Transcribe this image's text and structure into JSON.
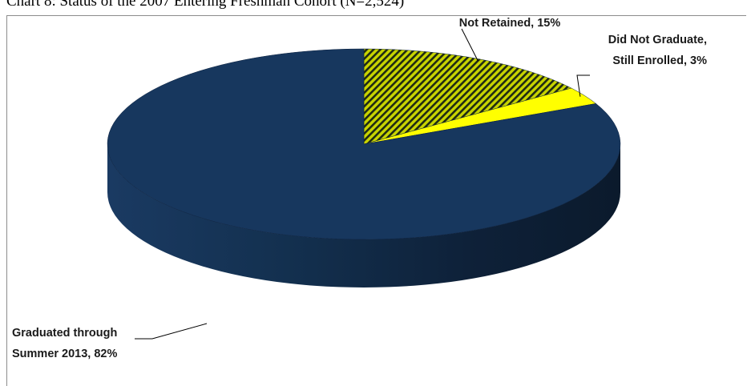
{
  "caption": "Chart 8: Status of the 2007 Entering Freshman Cohort (N=2,524)",
  "chart_data": {
    "type": "pie",
    "title": "Chart 8: Status of the 2007 Entering Freshman Cohort (N=2,524)",
    "three_d": true,
    "legend": "none",
    "slices": [
      {
        "name": "Not Retained",
        "value": 15,
        "label": [
          "Not Retained, 15%"
        ],
        "color": "#c8d400",
        "pattern": "diagonal-hatch"
      },
      {
        "name": "Did Not Graduate, Still Enrolled",
        "value": 3,
        "label": [
          "Did Not Graduate,",
          "Still Enrolled, 3%"
        ],
        "color": "#ffff00"
      },
      {
        "name": "Graduated through Summer 2013",
        "value": 82,
        "label": [
          "Graduated through",
          "Summer 2013, 82%"
        ],
        "color": "#17375e"
      }
    ]
  }
}
